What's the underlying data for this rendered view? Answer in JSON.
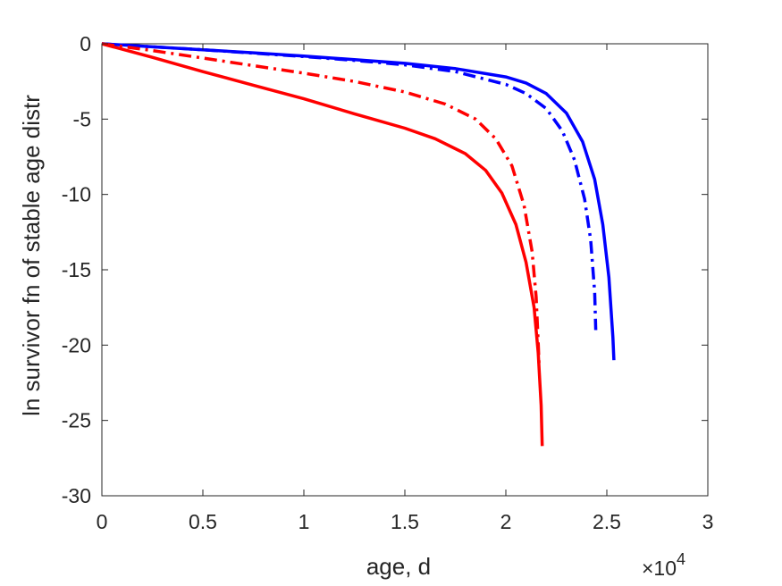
{
  "chart_data": {
    "type": "line",
    "title": "",
    "xlabel": "age, d",
    "ylabel": "ln survivor fn of stable age distr",
    "x_exponent_label": "×10",
    "x_exponent_power": "4",
    "xlim": [
      0,
      3
    ],
    "ylim": [
      -30,
      0
    ],
    "xticks": [
      "0",
      "0.5",
      "1",
      "1.5",
      "2",
      "2.5",
      "3"
    ],
    "yticks": [
      "0",
      "-5",
      "-10",
      "-15",
      "-20",
      "-25",
      "-30"
    ],
    "grid": false,
    "legend": "none",
    "series": [
      {
        "color": "#0000ff",
        "line_style": "solid",
        "x": [
          0,
          0.25,
          0.5,
          0.75,
          1.0,
          1.25,
          1.5,
          1.75,
          2.0,
          2.1,
          2.2,
          2.3,
          2.38,
          2.44,
          2.48,
          2.51,
          2.53,
          2.535
        ],
        "y": [
          0,
          -0.2,
          -0.4,
          -0.6,
          -0.82,
          -1.05,
          -1.3,
          -1.65,
          -2.2,
          -2.6,
          -3.3,
          -4.6,
          -6.5,
          -9.0,
          -12.0,
          -15.5,
          -19.5,
          -21.0
        ]
      },
      {
        "color": "#0000ff",
        "line_style": "dashdot",
        "x": [
          0,
          0.25,
          0.5,
          0.75,
          1.0,
          1.25,
          1.5,
          1.75,
          2.0,
          2.1,
          2.2,
          2.28,
          2.34,
          2.39,
          2.42,
          2.44,
          2.445
        ],
        "y": [
          0,
          -0.2,
          -0.4,
          -0.62,
          -0.85,
          -1.1,
          -1.4,
          -1.85,
          -2.7,
          -3.3,
          -4.3,
          -5.8,
          -7.7,
          -10.3,
          -13.0,
          -16.5,
          -19.0
        ]
      },
      {
        "color": "#ff0000",
        "line_style": "dashdot",
        "x": [
          0,
          0.25,
          0.5,
          0.75,
          1.0,
          1.25,
          1.5,
          1.7,
          1.85,
          1.95,
          2.03,
          2.09,
          2.13,
          2.15,
          2.16,
          2.165
        ],
        "y": [
          0,
          -0.45,
          -0.95,
          -1.45,
          -1.95,
          -2.5,
          -3.2,
          -4.0,
          -5.0,
          -6.3,
          -8.1,
          -10.7,
          -13.8,
          -16.8,
          -19.8,
          -21.5
        ]
      },
      {
        "color": "#ff0000",
        "line_style": "solid",
        "x": [
          0,
          0.25,
          0.5,
          0.75,
          1.0,
          1.25,
          1.5,
          1.65,
          1.8,
          1.9,
          1.98,
          2.05,
          2.1,
          2.14,
          2.16,
          2.175,
          2.18
        ],
        "y": [
          0,
          -0.9,
          -1.85,
          -2.75,
          -3.65,
          -4.65,
          -5.6,
          -6.3,
          -7.3,
          -8.4,
          -9.9,
          -12.0,
          -14.5,
          -17.5,
          -20.5,
          -24.0,
          -26.7
        ]
      }
    ]
  }
}
